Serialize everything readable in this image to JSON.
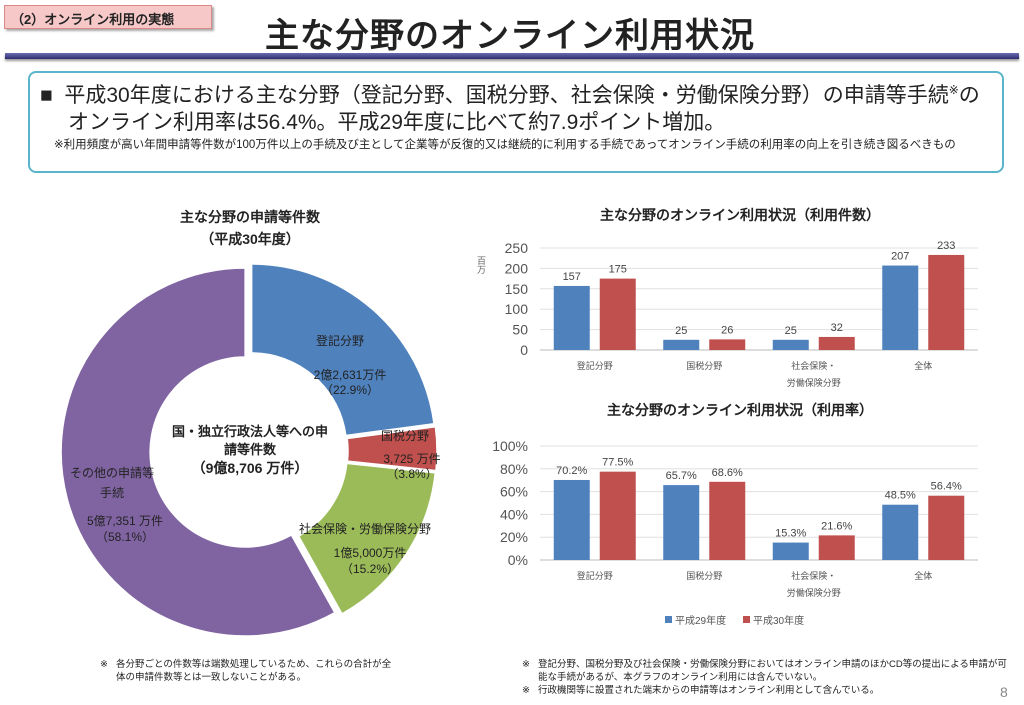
{
  "header": {
    "section_tag": "（2）オンライン利用の実態",
    "title": "主な分野のオンライン利用状況"
  },
  "summary": {
    "bullet": "■",
    "main": "平成30年度における主な分野（登記分野、国税分野、社会保険・労働保険分野）の申請等手続",
    "sup": "※",
    "main2": "のオンライン利用率は56.4%。平成29年度に比べて約7.9ポイント増加。",
    "note": "※利用頻度が高い年間申請等件数が100万件以上の手続及び主として企業等が反復的又は継続的に利用する手続であってオンライン手続の利用率の向上を引き続き図るべきもの"
  },
  "chart_data": [
    {
      "type": "pie",
      "title": "主な分野の申請等件数",
      "subtitle": "（平成30年度）",
      "center_label_1": "国・独立行政法人等への申",
      "center_label_2": "請等件数",
      "center_total": "（9億8,706 万件）",
      "slices": [
        {
          "name": "登記分野",
          "value_label": "2億2,631万件",
          "percent": 22.9,
          "percent_label": "（22.9%）",
          "color": "#4f81bd"
        },
        {
          "name": "国税分野",
          "value_label": "3,725 万件",
          "percent": 3.8,
          "percent_label": "（3.8%）",
          "color": "#c0504d"
        },
        {
          "name": "社会保険・労働保険分野",
          "value_label": "1億5,000万件",
          "percent": 15.2,
          "percent_label": "（15.2%）",
          "color": "#9bbb59"
        },
        {
          "name": "その他の申請等",
          "name2": "手続",
          "value_label": "5億7,351 万件",
          "percent": 58.1,
          "percent_label": "（58.1%）",
          "color": "#8064a2"
        }
      ]
    },
    {
      "type": "bar",
      "title": "主な分野のオンライン利用状況（利用件数）",
      "ylabel": "百万",
      "ylim": [
        0,
        250
      ],
      "yticks": [
        "0",
        "50",
        "100",
        "150",
        "200",
        "250"
      ],
      "categories": [
        [
          "登記分野",
          ""
        ],
        [
          "国税分野",
          ""
        ],
        [
          "社会保険・",
          "労働保険分野"
        ],
        [
          "全体",
          ""
        ]
      ],
      "series": [
        {
          "name": "平成29年度",
          "color": "#4f81bd",
          "values": [
            157,
            25,
            25,
            207
          ],
          "labels": [
            "157",
            "25",
            "25",
            "207"
          ]
        },
        {
          "name": "平成30年度",
          "color": "#c0504d",
          "values": [
            175,
            26,
            32,
            233
          ],
          "labels": [
            "175",
            "26",
            "32",
            "233"
          ]
        }
      ]
    },
    {
      "type": "bar",
      "title": "主な分野のオンライン利用状況（利用率）",
      "ylabel": "",
      "ylim": [
        0,
        100
      ],
      "yticks": [
        "0%",
        "20%",
        "40%",
        "60%",
        "80%",
        "100%"
      ],
      "categories": [
        [
          "登記分野",
          ""
        ],
        [
          "国税分野",
          ""
        ],
        [
          "社会保険・",
          "労働保険分野"
        ],
        [
          "全体",
          ""
        ]
      ],
      "series": [
        {
          "name": "平成29年度",
          "color": "#4f81bd",
          "values": [
            70.2,
            65.7,
            15.3,
            48.5
          ],
          "labels": [
            "70.2%",
            "65.7%",
            "15.3%",
            "48.5%"
          ]
        },
        {
          "name": "平成30年度",
          "color": "#c0504d",
          "values": [
            77.5,
            68.6,
            21.6,
            56.4
          ],
          "labels": [
            "77.5%",
            "68.6%",
            "21.6%",
            "56.4%"
          ]
        }
      ],
      "legend": "bottom"
    }
  ],
  "footnotes": {
    "left_mark": "※",
    "left": "各分野ごとの件数等は端数処理しているため、これらの合計が全体の申請件数等とは一致しないことがある。",
    "right1_mark": "※",
    "right1": "登記分野、国税分野及び社会保険・労働保険分野においてはオンライン申請のほかCD等の提出による申請が可能な手続があるが、本グラフのオンライン利用には含んでいない。",
    "right2_mark": "※",
    "right2": "行政機関等に設置された端末からの申請等はオンライン利用として含んでいる。"
  },
  "page_number": "8"
}
